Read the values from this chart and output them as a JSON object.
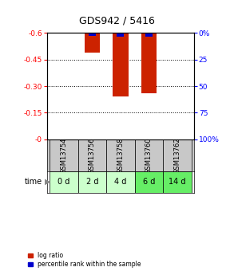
{
  "title": "GDS942 / 5416",
  "samples": [
    "GSM13754",
    "GSM13756",
    "GSM13758",
    "GSM13760",
    "GSM13762"
  ],
  "time_labels": [
    "0 d",
    "2 d",
    "4 d",
    "6 d",
    "14 d"
  ],
  "log_ratio": [
    0.0,
    -0.49,
    -0.24,
    -0.26,
    0.0
  ],
  "percentile_rank_left": [
    0.0,
    -0.582,
    -0.578,
    -0.578,
    0.0
  ],
  "ylim_left": [
    -0.6,
    0.0
  ],
  "ylim_right": [
    0,
    100
  ],
  "yticks_left": [
    0.0,
    -0.15,
    -0.3,
    -0.45,
    -0.6
  ],
  "ytick_labels_left": [
    "-0",
    "-0.15",
    "-0.30",
    "-0.45",
    "-0.6"
  ],
  "yticks_right": [
    0,
    25,
    50,
    75,
    100
  ],
  "ytick_labels_right": [
    "0%",
    "25",
    "50",
    "75",
    "100%"
  ],
  "bar_width": 0.55,
  "blue_bar_width": 0.25,
  "red_color": "#cc2200",
  "blue_color": "#0000cc",
  "bg_plot": "#ffffff",
  "bg_gsm": "#c8c8c8",
  "time_colors": [
    "#ccffcc",
    "#ccffcc",
    "#ccffcc",
    "#66ee66",
    "#66ee66"
  ],
  "legend_red": "log ratio",
  "legend_blue": "percentile rank within the sample",
  "time_label": "time",
  "time_arrow_color": "#888888"
}
